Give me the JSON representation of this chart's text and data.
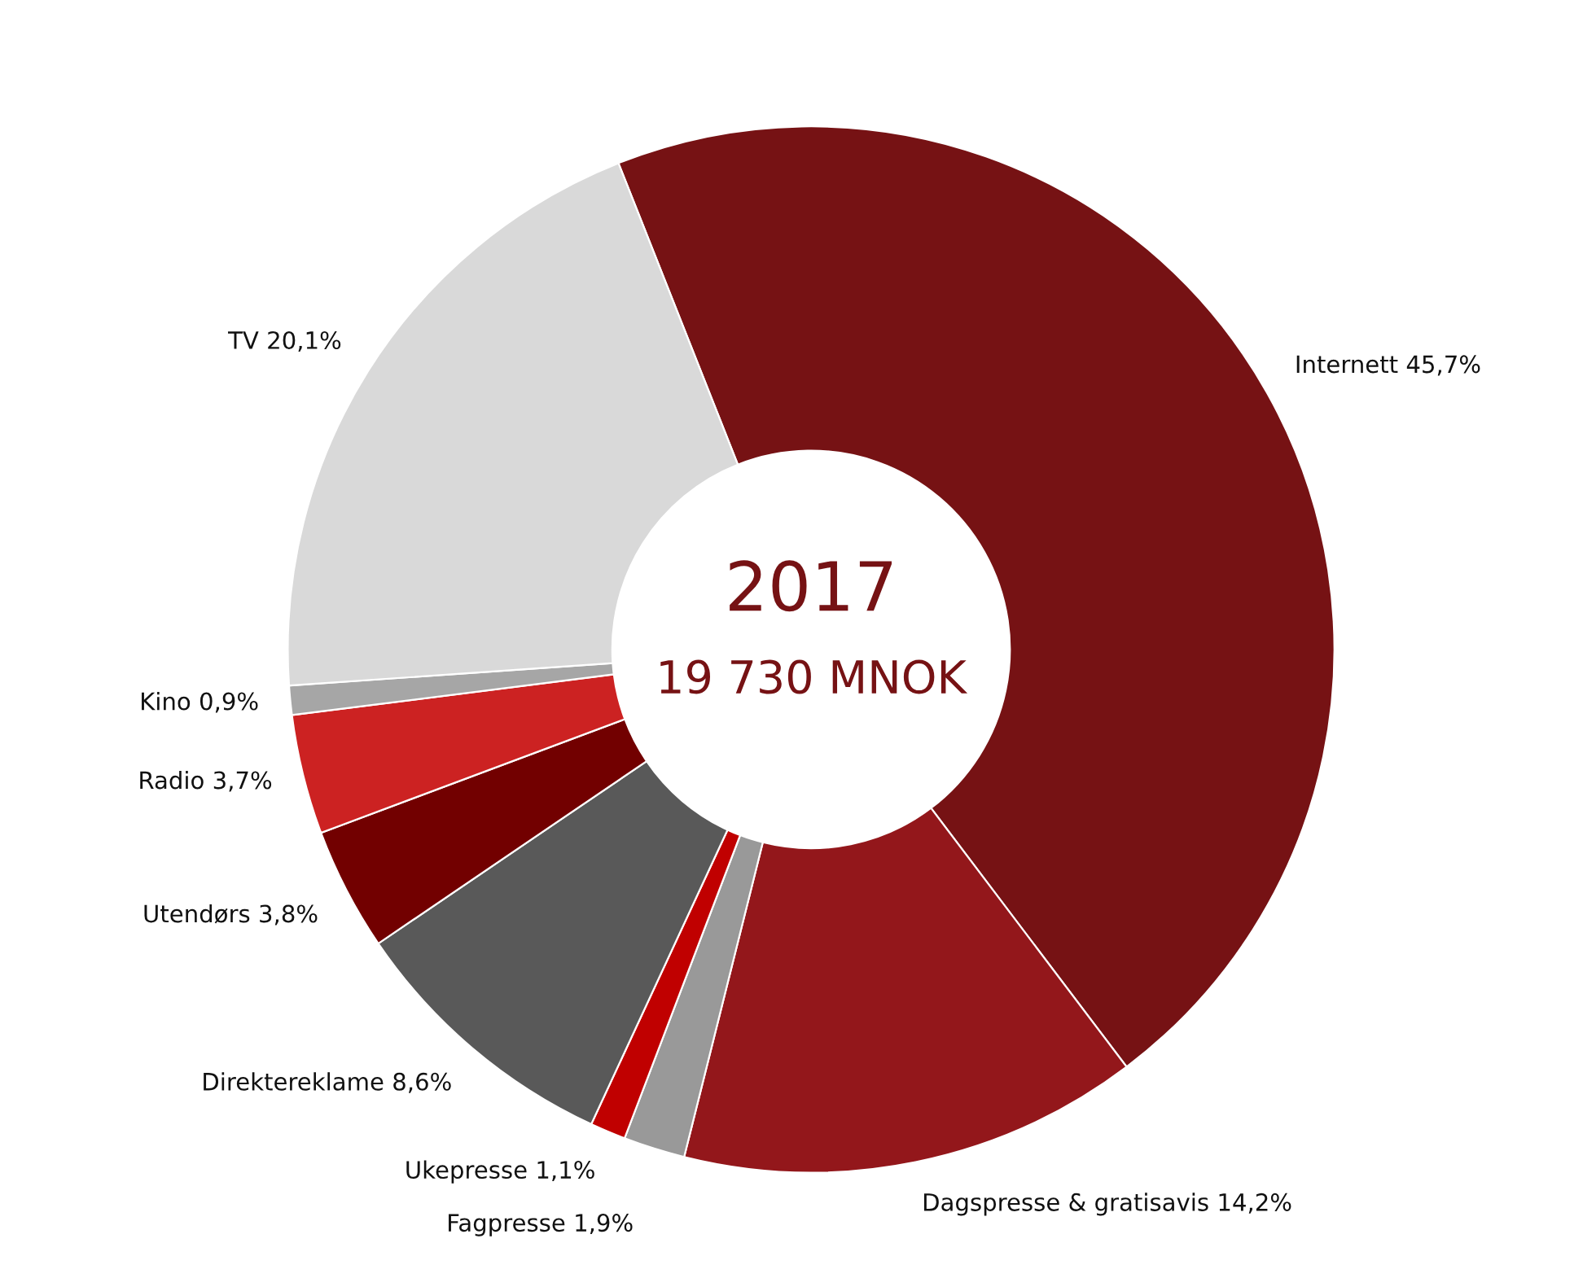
{
  "chart_data": {
    "type": "donut",
    "categories": [
      "Internett",
      "Dagspresse & gratisavis",
      "Fagpresse",
      "Ukepresse",
      "Direktereklame",
      "Utendørs",
      "Radio",
      "Kino",
      "TV"
    ],
    "values": [
      45.7,
      14.2,
      1.9,
      1.1,
      8.6,
      3.8,
      3.7,
      0.9,
      20.1
    ],
    "value_labels": [
      "45,7%",
      "14,2%",
      "1,9%",
      "1,1%",
      "8,6%",
      "3,8%",
      "3,7%",
      "0,9%",
      "20,1%"
    ],
    "colors": [
      "#761214",
      "#93171b",
      "#999999",
      "#c00000",
      "#595959",
      "#720000",
      "#cc2222",
      "#a6a6a6",
      "#d9d9d9"
    ],
    "annotations": [
      "2017",
      "19 730 MNOK"
    ],
    "legend": false
  }
}
